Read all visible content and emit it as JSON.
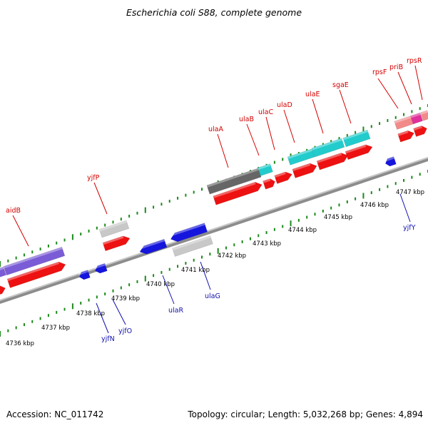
{
  "title": "Escherichia coli S88, complete genome",
  "footer": {
    "accession": "Accession: NC_011742",
    "summary": "Topology: circular; Length: 5,032,268 bp; Genes: 4,894"
  },
  "colors": {
    "forward_gene": "#ee1111",
    "reverse_gene": "#1515dd",
    "tick": "#1a8a1a",
    "backbone": "#8c8c8c",
    "top_label": "#d40000",
    "bottom_label": "#1010b0"
  },
  "scale": {
    "unit": "kbp",
    "major_ticks": [
      "4736 kbp",
      "4737 kbp",
      "4738 kbp",
      "4739 kbp",
      "4740 kbp",
      "4741 kbp",
      "4742 kbp",
      "4743 kbp",
      "4744 kbp",
      "4745 kbp",
      "4746 kbp",
      "4747 kbp"
    ]
  },
  "genes_top": [
    "aidB",
    "yjfP",
    "ulaA",
    "ulaB",
    "ulaC",
    "ulaD",
    "ulaE",
    "sgaE",
    "rpsF",
    "priB",
    "rpsR"
  ],
  "genes_bottom": [
    "yjfN",
    "yjfO",
    "ulaR",
    "ulaG",
    "yjfY"
  ]
}
